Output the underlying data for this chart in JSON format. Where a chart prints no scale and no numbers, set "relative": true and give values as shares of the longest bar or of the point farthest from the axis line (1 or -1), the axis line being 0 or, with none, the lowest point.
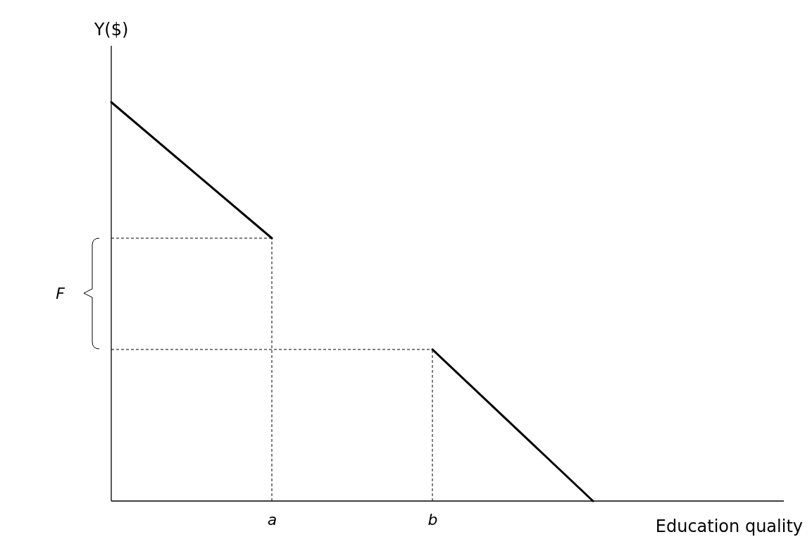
{
  "chart_data": {
    "type": "line",
    "relative": true,
    "xlabel": "Education quality",
    "ylabel": "Y($)",
    "categories": [
      null,
      "a",
      "b",
      null
    ],
    "tick_labels": "x",
    "marker": "none",
    "series": [
      {
        "color": "#000000",
        "values": [
          1,
          0.659,
          null,
          null
        ]
      },
      {
        "color": "#000000",
        "values": [
          null,
          null,
          0.38,
          0
        ]
      }
    ],
    "ref_lines": [
      {
        "axis": "y",
        "value": 0.659,
        "line_style": "dashed",
        "color": "#000000"
      },
      {
        "axis": "y",
        "value": 0.38,
        "line_style": "dashed",
        "color": "#000000"
      },
      {
        "axis": "x",
        "value": "a",
        "line_style": "dashed",
        "color": "#000000"
      },
      {
        "axis": "x",
        "value": "b",
        "line_style": "dashed",
        "color": "#000000"
      }
    ],
    "annotations": [
      "F"
    ]
  }
}
